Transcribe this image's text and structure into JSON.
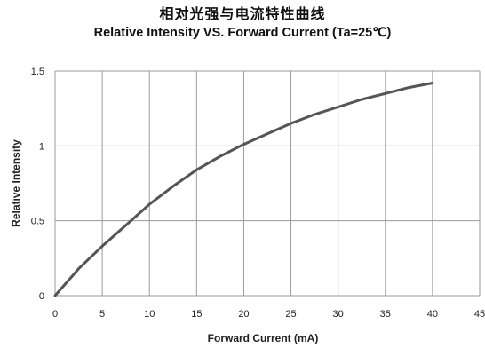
{
  "titles": {
    "cn": "相对光强与电流特性曲线",
    "en": "Relative Intensity VS. Forward Current  (Ta=25℃)"
  },
  "chart_data": {
    "type": "line",
    "title": "Relative Intensity VS. Forward Current  (Ta=25℃)",
    "xlabel": "Forward Current (mA)",
    "ylabel": "Relative  Intensity",
    "xlim": [
      0,
      45
    ],
    "ylim": [
      0,
      1.5
    ],
    "x_ticks": [
      0,
      5,
      10,
      15,
      20,
      25,
      30,
      35,
      40,
      45
    ],
    "y_ticks": [
      0,
      0.5,
      1,
      1.5
    ],
    "x_tick_labels": [
      "0",
      "5",
      "10",
      "15",
      "20",
      "25",
      "30",
      "35",
      "40",
      "45"
    ],
    "y_tick_labels": [
      "0",
      "0.5",
      "1",
      "1.5"
    ],
    "grid": true,
    "line_color": "#555555",
    "series": [
      {
        "x": [
          0,
          2.5,
          5,
          7.5,
          10,
          12.5,
          15,
          17.5,
          20,
          22.5,
          25,
          27.5,
          30,
          32.5,
          35,
          37.5,
          40
        ],
        "values": [
          0,
          0.18,
          0.33,
          0.47,
          0.61,
          0.73,
          0.84,
          0.93,
          1.01,
          1.08,
          1.15,
          1.21,
          1.26,
          1.31,
          1.35,
          1.39,
          1.42
        ]
      }
    ]
  }
}
